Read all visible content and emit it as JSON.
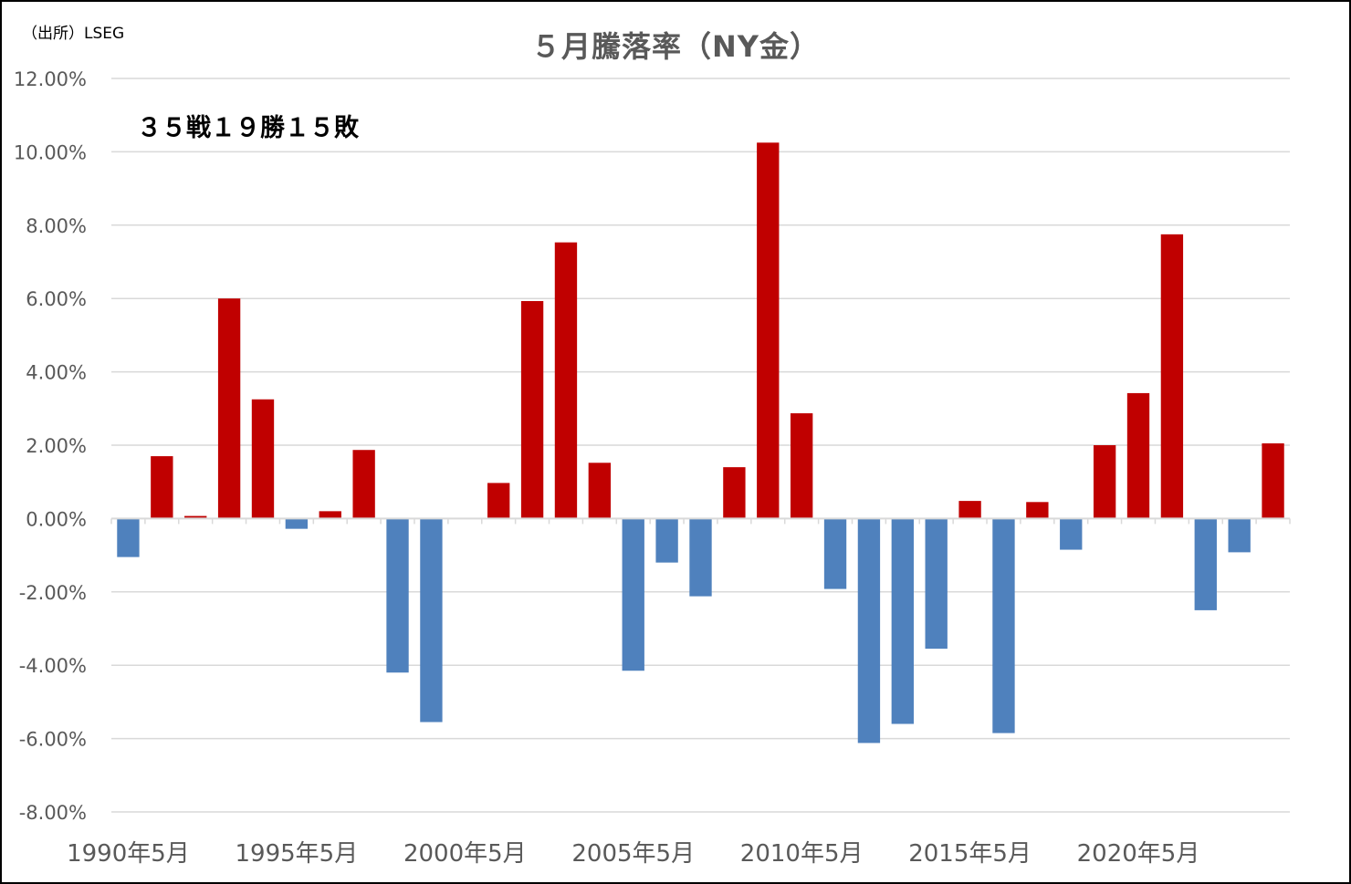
{
  "source": "（出所）LSEG",
  "annotation": "３５戦１９勝１５敗",
  "chart_data": {
    "type": "bar",
    "title": "５月騰落率（NY金）",
    "xlabel": "",
    "ylabel": "",
    "ylim": [
      -8,
      12
    ],
    "ytick_step": 2,
    "ytick_labels": [
      "12.00%",
      "10.00%",
      "8.00%",
      "6.00%",
      "4.00%",
      "2.00%",
      "0.00%",
      "-2.00%",
      "-4.00%",
      "-6.00%",
      "-8.00%"
    ],
    "xtick_labels": [
      "1990年5月",
      "1995年5月",
      "2000年5月",
      "2005年5月",
      "2010年5月",
      "2015年5月",
      "2020年5月"
    ],
    "categories": [
      "1990年5月",
      "1991年5月",
      "1992年5月",
      "1993年5月",
      "1994年5月",
      "1995年5月",
      "1996年5月",
      "1997年5月",
      "1998年5月",
      "1999年5月",
      "2000年5月",
      "2001年5月",
      "2002年5月",
      "2003年5月",
      "2004年5月",
      "2005年5月",
      "2006年5月",
      "2007年5月",
      "2008年5月",
      "2009年5月",
      "2010年5月",
      "2011年5月",
      "2012年5月",
      "2013年5月",
      "2014年5月",
      "2015年5月",
      "2016年5月",
      "2017年5月",
      "2018年5月",
      "2019年5月",
      "2020年5月",
      "2021年5月",
      "2022年5月",
      "2023年5月",
      "2024年5月"
    ],
    "values": [
      -1.05,
      1.7,
      0.07,
      6.0,
      3.25,
      -0.28,
      0.2,
      1.87,
      -4.2,
      -5.55,
      0.0,
      0.97,
      5.93,
      7.53,
      1.52,
      -4.15,
      -1.2,
      -2.12,
      1.4,
      10.25,
      2.87,
      -1.92,
      -6.12,
      -5.6,
      -3.55,
      0.48,
      -5.85,
      0.45,
      -0.85,
      2.0,
      3.42,
      7.75,
      -2.5,
      -0.92,
      2.05
    ],
    "grid": true,
    "legend": "none",
    "colors": {
      "positive": "#C00000",
      "negative": "#4F81BD",
      "grid": "#D9D9D9",
      "axis": "#D9D9D9",
      "text": "#595959"
    }
  }
}
